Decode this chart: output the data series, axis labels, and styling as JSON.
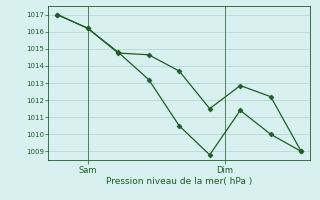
{
  "title": "",
  "xlabel": "Pression niveau de la mer( hPa )",
  "background_color": "#d8f0f0",
  "grid_color": "#b8d8d8",
  "line_color": "#1a6020",
  "ylim": [
    1008.5,
    1017.5
  ],
  "yticks": [
    1009,
    1010,
    1011,
    1012,
    1013,
    1014,
    1015,
    1016,
    1017
  ],
  "line1_x": [
    0,
    1,
    2,
    3,
    4,
    5,
    6,
    7,
    8
  ],
  "line1_y": [
    1017.0,
    1016.2,
    1014.8,
    1013.2,
    1010.5,
    1008.8,
    1011.4,
    1010.0,
    1009.0
  ],
  "line2_x": [
    0,
    1,
    2,
    3,
    4,
    5,
    6,
    7,
    8
  ],
  "line2_y": [
    1017.0,
    1016.2,
    1014.75,
    1014.65,
    1013.7,
    1011.5,
    1012.85,
    1012.2,
    1009.0
  ],
  "sam_x": 1.0,
  "dim_x": 5.5,
  "xlim": [
    -0.3,
    8.3
  ]
}
